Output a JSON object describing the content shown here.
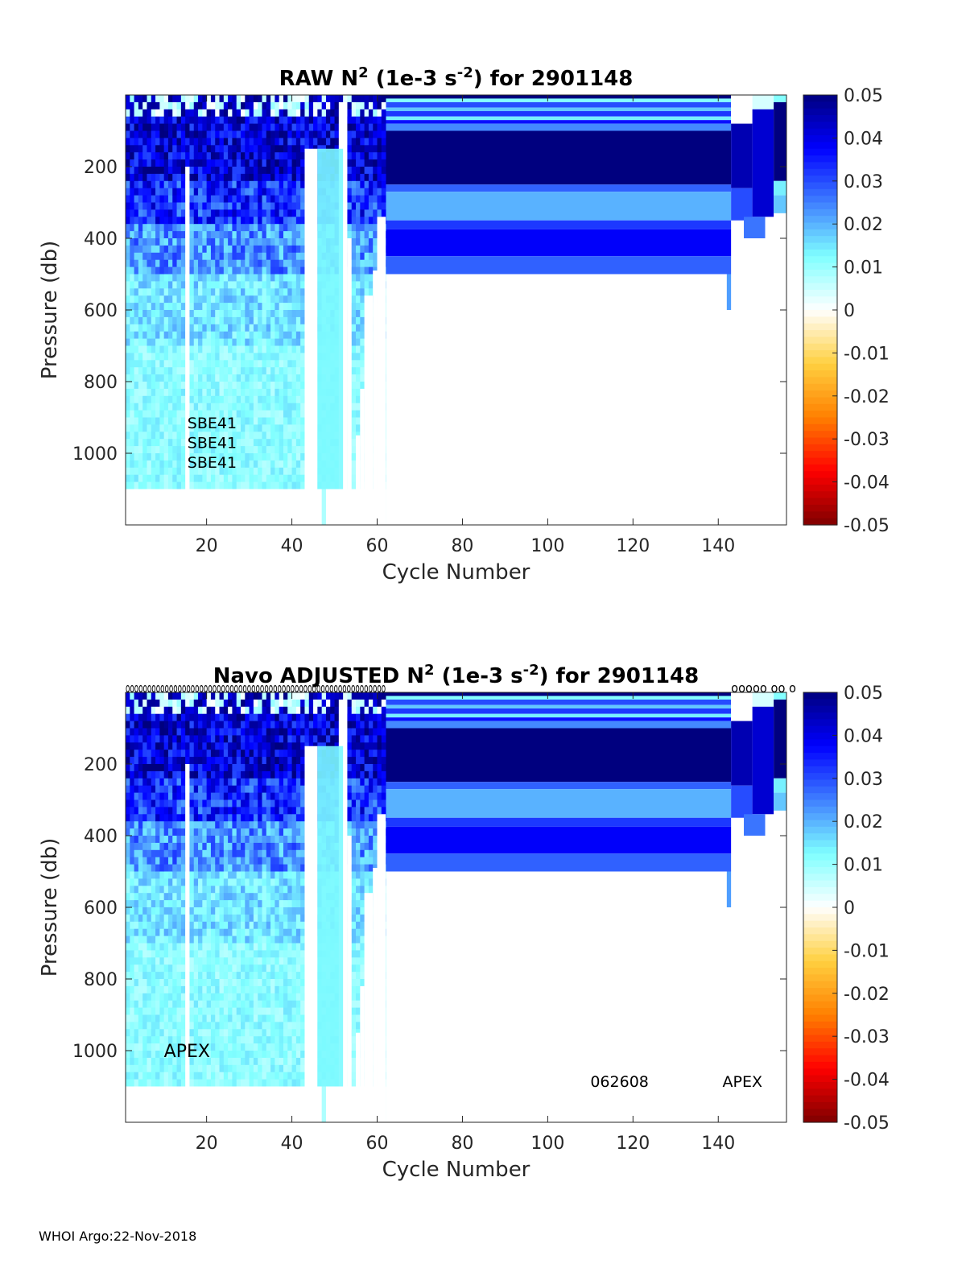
{
  "footer": "WHOI Argo:22-Nov-2018",
  "colorbar": {
    "ticks": [
      "0.05",
      "0.04",
      "0.03",
      "0.02",
      "0.01",
      "0",
      "-0.01",
      "-0.02",
      "-0.03",
      "-0.04",
      "-0.05"
    ],
    "colors": [
      "#00007f",
      "#0000ff",
      "#3f7fff",
      "#7fffff",
      "#ffffff",
      "#ffd040",
      "#ff8000",
      "#ff0000",
      "#7f0000"
    ]
  },
  "chart_data": [
    {
      "type": "heatmap",
      "title": "RAW N² (1e-3 s⁻²) for 2901148",
      "title_parts": {
        "pre": "RAW N",
        "sup1": "2",
        "mid": " (1e-3 s",
        "sup2": "-2",
        "post": ") for 2901148"
      },
      "xlabel": "Cycle Number",
      "ylabel": "Pressure (db)",
      "xlim": [
        1,
        156
      ],
      "ylim": [
        1200,
        0
      ],
      "xticks": [
        20,
        40,
        60,
        80,
        100,
        120,
        140
      ],
      "yticks": [
        200,
        400,
        600,
        800,
        1000
      ],
      "clim": [
        -0.05,
        0.05
      ],
      "annotations": [
        "SBE41",
        "SBE41",
        "SBE41"
      ],
      "cycle_markers": "",
      "fill": [
        {
          "c0": 1,
          "c1": 62,
          "p0": 0,
          "p1": 60,
          "v": 0.0
        },
        {
          "c0": 1,
          "c1": 62,
          "p0": 60,
          "p1": 240,
          "v": 0.045
        },
        {
          "c0": 1,
          "c1": 62,
          "p0": 240,
          "p1": 360,
          "v": 0.032
        },
        {
          "c0": 1,
          "c1": 62,
          "p0": 360,
          "p1": 500,
          "v": 0.022
        },
        {
          "c0": 1,
          "c1": 62,
          "p0": 500,
          "p1": 700,
          "v": 0.014
        },
        {
          "c0": 1,
          "c1": 62,
          "p0": 700,
          "p1": 900,
          "v": 0.011
        },
        {
          "c0": 1,
          "c1": 62,
          "p0": 900,
          "p1": 1200,
          "v": 0.008
        },
        {
          "c0": 62,
          "c1": 143,
          "p0": 0,
          "p1": 10,
          "v": 0.05
        },
        {
          "c0": 62,
          "c1": 143,
          "p0": 10,
          "p1": 20,
          "v": 0.012
        },
        {
          "c0": 62,
          "c1": 143,
          "p0": 20,
          "p1": 35,
          "v": 0.03
        },
        {
          "c0": 62,
          "c1": 143,
          "p0": 35,
          "p1": 45,
          "v": 0.018
        },
        {
          "c0": 62,
          "c1": 143,
          "p0": 45,
          "p1": 60,
          "v": 0.032
        },
        {
          "c0": 62,
          "c1": 143,
          "p0": 60,
          "p1": 70,
          "v": 0.014
        },
        {
          "c0": 62,
          "c1": 143,
          "p0": 70,
          "p1": 80,
          "v": 0.036
        },
        {
          "c0": 62,
          "c1": 143,
          "p0": 80,
          "p1": 100,
          "v": 0.024
        },
        {
          "c0": 62,
          "c1": 143,
          "p0": 100,
          "p1": 250,
          "v": 0.05
        },
        {
          "c0": 62,
          "c1": 143,
          "p0": 250,
          "p1": 270,
          "v": 0.028
        },
        {
          "c0": 62,
          "c1": 143,
          "p0": 270,
          "p1": 350,
          "v": 0.02
        },
        {
          "c0": 62,
          "c1": 143,
          "p0": 350,
          "p1": 375,
          "v": 0.032
        },
        {
          "c0": 62,
          "c1": 143,
          "p0": 375,
          "p1": 450,
          "v": 0.038
        },
        {
          "c0": 62,
          "c1": 143,
          "p0": 450,
          "p1": 500,
          "v": 0.028
        },
        {
          "c0": 142,
          "c1": 143,
          "p0": 500,
          "p1": 600,
          "v": 0.022
        },
        {
          "c0": 143,
          "c1": 148,
          "p0": 0,
          "p1": 80,
          "v": 0.0
        },
        {
          "c0": 143,
          "c1": 148,
          "p0": 80,
          "p1": 260,
          "v": 0.045
        },
        {
          "c0": 143,
          "c1": 148,
          "p0": 260,
          "p1": 350,
          "v": 0.03
        },
        {
          "c0": 148,
          "c1": 153,
          "p0": 0,
          "p1": 40,
          "v": 0.004
        },
        {
          "c0": 148,
          "c1": 153,
          "p0": 40,
          "p1": 340,
          "v": 0.042
        },
        {
          "c0": 146,
          "c1": 151,
          "p0": 340,
          "p1": 400,
          "v": 0.026
        },
        {
          "c0": 153,
          "c1": 156,
          "p0": 0,
          "p1": 20,
          "v": 0.012
        },
        {
          "c0": 153,
          "c1": 156,
          "p0": 20,
          "p1": 240,
          "v": 0.05
        },
        {
          "c0": 153,
          "c1": 156,
          "p0": 240,
          "p1": 280,
          "v": 0.014
        },
        {
          "c0": 153,
          "c1": 156,
          "p0": 280,
          "p1": 330,
          "v": 0.018
        }
      ],
      "gaps": [
        {
          "c0": 1,
          "c1": 62,
          "p0": 1100,
          "p1": 1200
        },
        {
          "c0": 15,
          "c1": 16,
          "p0": 200,
          "p1": 1200
        },
        {
          "c0": 43,
          "c1": 46,
          "p0": 150,
          "p1": 1200
        },
        {
          "c0": 51,
          "c1": 53,
          "p0": 20,
          "p1": 1200
        },
        {
          "c0": 53,
          "c1": 54,
          "p0": 400,
          "p1": 1200
        },
        {
          "c0": 55,
          "c1": 56,
          "p0": 950,
          "p1": 1200
        },
        {
          "c0": 56,
          "c1": 57,
          "p0": 820,
          "p1": 1200
        },
        {
          "c0": 57,
          "c1": 59,
          "p0": 560,
          "p1": 1200
        },
        {
          "c0": 59,
          "c1": 60,
          "p0": 490,
          "p1": 1200
        },
        {
          "c0": 60,
          "c1": 62,
          "p0": 340,
          "p1": 1200
        }
      ]
    },
    {
      "type": "heatmap",
      "title": "Navo  ADJUSTED N² (1e-3 s⁻²) for 2901148",
      "title_parts": {
        "pre": "Navo  ADJUSTED N",
        "sup1": "2",
        "mid": " (1e-3 s",
        "sup2": "-2",
        "post": ") for 2901148"
      },
      "xlabel": "Cycle Number",
      "ylabel": "Pressure (db)",
      "xlim": [
        1,
        156
      ],
      "ylim": [
        1200,
        0
      ],
      "xticks": [
        20,
        40,
        60,
        80,
        100,
        120,
        140
      ],
      "yticks": [
        200,
        400,
        600,
        800,
        1000
      ],
      "clim": [
        -0.05,
        0.05
      ],
      "annotations": [
        "APEX",
        "062608",
        "APEX"
      ],
      "cycle_markers": "oooooooooooooooooooooooooooooooooooooooooooooooooooooooooooo",
      "cycle_markers_right": "ooooo oo o",
      "fill": [
        {
          "c0": 1,
          "c1": 62,
          "p0": 0,
          "p1": 60,
          "v": 0.0
        },
        {
          "c0": 1,
          "c1": 62,
          "p0": 60,
          "p1": 240,
          "v": 0.045
        },
        {
          "c0": 1,
          "c1": 62,
          "p0": 240,
          "p1": 360,
          "v": 0.032
        },
        {
          "c0": 1,
          "c1": 62,
          "p0": 360,
          "p1": 500,
          "v": 0.022
        },
        {
          "c0": 1,
          "c1": 62,
          "p0": 500,
          "p1": 700,
          "v": 0.014
        },
        {
          "c0": 1,
          "c1": 62,
          "p0": 700,
          "p1": 900,
          "v": 0.011
        },
        {
          "c0": 1,
          "c1": 62,
          "p0": 900,
          "p1": 1200,
          "v": 0.008
        },
        {
          "c0": 62,
          "c1": 143,
          "p0": 0,
          "p1": 10,
          "v": 0.05
        },
        {
          "c0": 62,
          "c1": 143,
          "p0": 10,
          "p1": 20,
          "v": 0.012
        },
        {
          "c0": 62,
          "c1": 143,
          "p0": 20,
          "p1": 35,
          "v": 0.03
        },
        {
          "c0": 62,
          "c1": 143,
          "p0": 35,
          "p1": 45,
          "v": 0.018
        },
        {
          "c0": 62,
          "c1": 143,
          "p0": 45,
          "p1": 60,
          "v": 0.032
        },
        {
          "c0": 62,
          "c1": 143,
          "p0": 60,
          "p1": 70,
          "v": 0.014
        },
        {
          "c0": 62,
          "c1": 143,
          "p0": 70,
          "p1": 80,
          "v": 0.036
        },
        {
          "c0": 62,
          "c1": 143,
          "p0": 80,
          "p1": 100,
          "v": 0.024
        },
        {
          "c0": 62,
          "c1": 143,
          "p0": 100,
          "p1": 250,
          "v": 0.05
        },
        {
          "c0": 62,
          "c1": 143,
          "p0": 250,
          "p1": 270,
          "v": 0.028
        },
        {
          "c0": 62,
          "c1": 143,
          "p0": 270,
          "p1": 350,
          "v": 0.02
        },
        {
          "c0": 62,
          "c1": 143,
          "p0": 350,
          "p1": 375,
          "v": 0.032
        },
        {
          "c0": 62,
          "c1": 143,
          "p0": 375,
          "p1": 450,
          "v": 0.038
        },
        {
          "c0": 62,
          "c1": 143,
          "p0": 450,
          "p1": 500,
          "v": 0.028
        },
        {
          "c0": 142,
          "c1": 143,
          "p0": 500,
          "p1": 600,
          "v": 0.022
        },
        {
          "c0": 143,
          "c1": 148,
          "p0": 0,
          "p1": 80,
          "v": 0.0
        },
        {
          "c0": 143,
          "c1": 148,
          "p0": 80,
          "p1": 260,
          "v": 0.045
        },
        {
          "c0": 143,
          "c1": 148,
          "p0": 260,
          "p1": 350,
          "v": 0.03
        },
        {
          "c0": 148,
          "c1": 153,
          "p0": 0,
          "p1": 40,
          "v": 0.004
        },
        {
          "c0": 148,
          "c1": 153,
          "p0": 40,
          "p1": 340,
          "v": 0.042
        },
        {
          "c0": 146,
          "c1": 151,
          "p0": 340,
          "p1": 400,
          "v": 0.026
        },
        {
          "c0": 153,
          "c1": 156,
          "p0": 0,
          "p1": 20,
          "v": 0.012
        },
        {
          "c0": 153,
          "c1": 156,
          "p0": 20,
          "p1": 240,
          "v": 0.05
        },
        {
          "c0": 153,
          "c1": 156,
          "p0": 240,
          "p1": 280,
          "v": 0.014
        },
        {
          "c0": 153,
          "c1": 156,
          "p0": 280,
          "p1": 330,
          "v": 0.018
        }
      ],
      "gaps": [
        {
          "c0": 1,
          "c1": 62,
          "p0": 1100,
          "p1": 1200
        },
        {
          "c0": 15,
          "c1": 16,
          "p0": 200,
          "p1": 1200
        },
        {
          "c0": 43,
          "c1": 46,
          "p0": 150,
          "p1": 1200
        },
        {
          "c0": 51,
          "c1": 53,
          "p0": 20,
          "p1": 1200
        },
        {
          "c0": 53,
          "c1": 54,
          "p0": 400,
          "p1": 1200
        },
        {
          "c0": 55,
          "c1": 56,
          "p0": 950,
          "p1": 1200
        },
        {
          "c0": 56,
          "c1": 57,
          "p0": 820,
          "p1": 1200
        },
        {
          "c0": 57,
          "c1": 59,
          "p0": 560,
          "p1": 1200
        },
        {
          "c0": 59,
          "c1": 60,
          "p0": 490,
          "p1": 1200
        },
        {
          "c0": 60,
          "c1": 62,
          "p0": 340,
          "p1": 1200
        }
      ]
    }
  ]
}
